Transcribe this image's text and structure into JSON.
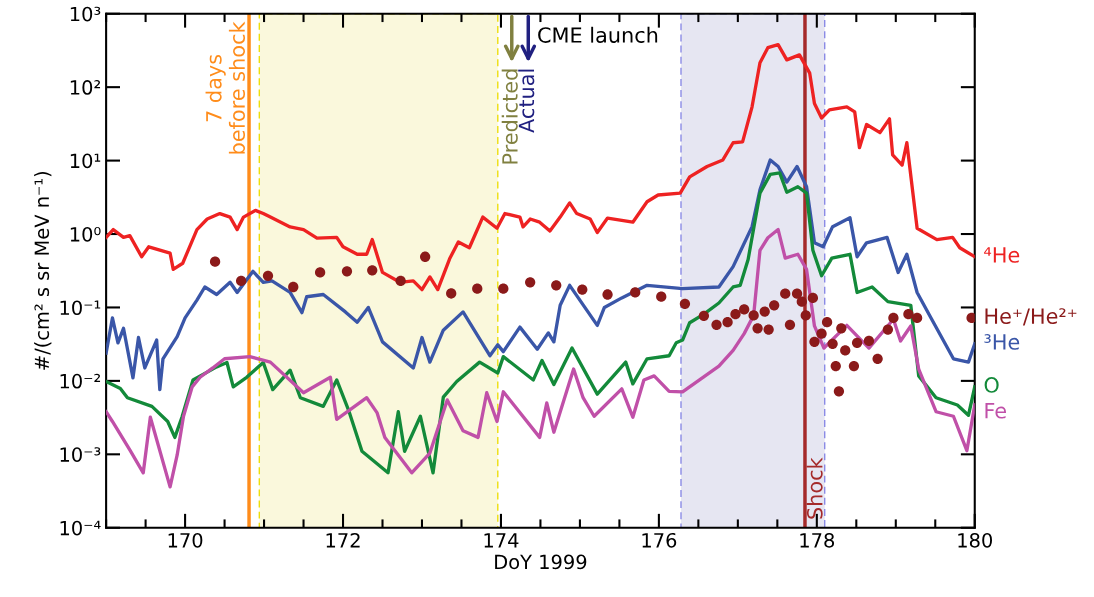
{
  "chart_data": {
    "type": "line",
    "xlabel": "DoY 1999",
    "ylabel": "#/(cm² s sr MeV n⁻¹)",
    "log": "y",
    "xlim": [
      169,
      180
    ],
    "xticks": [
      {
        "value": 169,
        "label": null
      },
      {
        "value": 169.5,
        "label": null
      },
      170,
      {
        "value": 170.5,
        "label": null
      },
      {
        "value": 171,
        "label": null
      },
      {
        "value": 171.5,
        "label": null
      },
      172,
      {
        "value": 172.5,
        "label": null
      },
      {
        "value": 173,
        "label": null
      },
      {
        "value": 173.5,
        "label": null
      },
      174,
      {
        "value": 174.5,
        "label": null
      },
      {
        "value": 175,
        "label": null
      },
      {
        "value": 175.5,
        "label": null
      },
      176,
      {
        "value": 176.5,
        "label": null
      },
      {
        "value": 177,
        "label": null
      },
      {
        "value": 177.5,
        "label": null
      },
      178,
      {
        "value": 178.5,
        "label": null
      },
      {
        "value": 179,
        "label": null
      },
      {
        "value": 179.5,
        "label": null
      },
      180
    ],
    "ylim": [
      0.0001,
      1000
    ],
    "yticks": [
      {
        "value": 0.0001,
        "label": "10⁻⁴"
      },
      {
        "value": 0.001,
        "label": "10⁻³"
      },
      {
        "value": 0.01,
        "label": "10⁻²"
      },
      {
        "value": 0.1,
        "label": "10⁻¹"
      },
      {
        "value": 1,
        "label": "10⁰"
      },
      {
        "value": 10,
        "label": "10¹"
      },
      {
        "value": 100,
        "label": "10²"
      },
      {
        "value": 1000,
        "label": "10³"
      }
    ],
    "grid": false,
    "legend": "right",
    "series": [
      {
        "name": "⁴He",
        "color": "#ee2222",
        "x": [
          169.0,
          169.09,
          169.22,
          169.3,
          169.45,
          169.54,
          169.81,
          169.85,
          169.97,
          170.15,
          170.28,
          170.44,
          170.57,
          170.66,
          170.74,
          170.89,
          170.99,
          171.08,
          171.33,
          171.5,
          171.67,
          171.92,
          172.0,
          172.18,
          172.3,
          172.37,
          172.5,
          172.72,
          172.89,
          173.0,
          173.1,
          173.2,
          173.35,
          173.46,
          173.6,
          173.77,
          173.95,
          174.05,
          174.24,
          174.28,
          174.37,
          174.49,
          174.62,
          174.75,
          174.87,
          174.96,
          175.13,
          175.22,
          175.35,
          175.67,
          175.85,
          175.99,
          176.27,
          176.39,
          176.61,
          176.81,
          176.94,
          177.06,
          177.18,
          177.28,
          177.38,
          177.51,
          177.62,
          177.78,
          177.91,
          177.97,
          178.06,
          178.16,
          178.38,
          178.48,
          178.54,
          178.63,
          178.8,
          178.92,
          178.96,
          179.08,
          179.14,
          179.27,
          179.52,
          179.72,
          179.81,
          180.0
        ],
        "values": [
          0.9,
          1.15,
          0.9,
          0.95,
          0.49,
          0.67,
          0.55,
          0.33,
          0.4,
          1.15,
          1.6,
          1.9,
          1.7,
          1.15,
          1.7,
          2.1,
          1.9,
          1.7,
          1.25,
          1.15,
          0.88,
          0.9,
          0.67,
          0.53,
          0.53,
          0.84,
          0.3,
          0.22,
          0.23,
          0.175,
          0.26,
          0.175,
          0.46,
          0.78,
          0.65,
          1.7,
          1.2,
          1.9,
          1.7,
          1.25,
          1.6,
          1.45,
          1.1,
          1.7,
          2.65,
          1.9,
          1.6,
          1.05,
          1.65,
          1.45,
          2.75,
          3.4,
          3.6,
          6.0,
          8.3,
          10.2,
          17.5,
          18,
          54,
          215,
          345,
          380,
          235,
          275,
          155,
          60,
          38,
          49,
          54,
          46,
          15,
          31,
          24,
          37,
          12,
          8.7,
          17.5,
          1.2,
          0.84,
          0.9,
          0.65,
          0.49
        ]
      },
      {
        "name": "He⁺/He²⁺",
        "type": "scatter",
        "marker": "circle",
        "color": "#8b1a1a",
        "x": [
          170.38,
          170.71,
          171.05,
          171.37,
          171.71,
          172.05,
          172.37,
          172.73,
          173.04,
          173.37,
          173.7,
          174.03,
          174.37,
          174.7,
          175.03,
          175.35,
          175.7,
          176.03,
          176.33,
          176.57,
          176.73,
          176.87,
          176.97,
          177.08,
          177.2,
          177.25,
          177.39,
          177.34,
          177.46,
          177.6,
          177.66,
          177.75,
          177.81,
          177.86,
          177.95,
          177.97,
          178.06,
          178.13,
          178.2,
          178.24,
          178.28,
          178.31,
          178.36,
          178.47,
          178.51,
          178.66,
          178.77,
          178.9,
          178.97,
          179.16,
          179.27,
          179.96
        ],
        "values": [
          0.42,
          0.23,
          0.27,
          0.19,
          0.3,
          0.31,
          0.32,
          0.23,
          0.49,
          0.155,
          0.18,
          0.18,
          0.22,
          0.2,
          0.175,
          0.15,
          0.16,
          0.14,
          0.112,
          0.077,
          0.058,
          0.063,
          0.081,
          0.094,
          0.078,
          0.052,
          0.05,
          0.088,
          0.107,
          0.154,
          0.058,
          0.154,
          0.12,
          0.078,
          0.135,
          0.034,
          0.044,
          0.063,
          0.032,
          0.0159,
          0.0072,
          0.052,
          0.026,
          0.0159,
          0.033,
          0.035,
          0.02,
          0.05,
          0.072,
          0.081,
          0.072,
          0.072
        ]
      },
      {
        "name": "³He",
        "color": "#3a56a8",
        "x": [
          169.0,
          169.08,
          169.15,
          169.22,
          169.34,
          169.41,
          169.49,
          169.64,
          169.68,
          169.72,
          169.9,
          170.0,
          170.15,
          170.25,
          170.4,
          170.57,
          170.66,
          170.86,
          170.99,
          171.1,
          171.33,
          171.48,
          171.54,
          171.75,
          172.03,
          172.18,
          172.32,
          172.5,
          172.89,
          173.0,
          173.1,
          173.27,
          173.52,
          173.86,
          173.96,
          174.03,
          174.24,
          174.46,
          174.6,
          174.67,
          174.75,
          174.87,
          175.22,
          175.31,
          175.53,
          175.85,
          176.3,
          176.76,
          176.94,
          177.18,
          177.28,
          177.41,
          177.51,
          177.62,
          177.75,
          177.87,
          177.97,
          178.08,
          178.2,
          178.42,
          178.51,
          178.63,
          178.89,
          179.03,
          179.14,
          179.27,
          179.42,
          179.73,
          179.92,
          180.0
        ],
        "values": [
          0.024,
          0.072,
          0.033,
          0.052,
          0.011,
          0.039,
          0.015,
          0.036,
          0.0076,
          0.02,
          0.04,
          0.072,
          0.126,
          0.19,
          0.15,
          0.22,
          0.16,
          0.31,
          0.22,
          0.23,
          0.16,
          0.085,
          0.14,
          0.15,
          0.087,
          0.063,
          0.1,
          0.034,
          0.015,
          0.039,
          0.018,
          0.049,
          0.087,
          0.022,
          0.031,
          0.025,
          0.054,
          0.027,
          0.045,
          0.034,
          0.107,
          0.2,
          0.057,
          0.1,
          0.135,
          0.2,
          0.18,
          0.19,
          0.36,
          1.26,
          4.0,
          10.2,
          8.3,
          5.1,
          8.3,
          4.4,
          0.76,
          0.67,
          1.26,
          1.66,
          0.49,
          0.76,
          0.9,
          0.3,
          0.53,
          0.16,
          0.081,
          0.02,
          0.018,
          0.032
        ]
      },
      {
        "name": "O",
        "color": "#138a3a",
        "x": [
          169.0,
          169.18,
          169.27,
          169.58,
          169.78,
          169.87,
          169.96,
          170.1,
          170.4,
          170.53,
          170.61,
          170.78,
          170.99,
          171.11,
          171.33,
          171.46,
          171.75,
          171.92,
          172.07,
          172.24,
          172.57,
          172.7,
          172.78,
          172.98,
          173.14,
          173.27,
          173.44,
          173.73,
          173.96,
          174.03,
          174.41,
          174.52,
          174.67,
          174.9,
          175.22,
          175.58,
          175.67,
          175.85,
          176.13,
          176.22,
          176.3,
          176.39,
          176.57,
          176.76,
          176.94,
          177.03,
          177.13,
          177.28,
          177.41,
          177.53,
          177.62,
          177.76,
          177.87,
          177.95,
          178.06,
          178.19,
          178.42,
          178.51,
          178.7,
          178.9,
          179.19,
          179.29,
          179.51,
          179.78,
          179.92,
          180.0
        ],
        "values": [
          0.0098,
          0.0079,
          0.0059,
          0.0045,
          0.0028,
          0.0017,
          0.0032,
          0.0103,
          0.0155,
          0.0178,
          0.0083,
          0.0112,
          0.0178,
          0.0076,
          0.014,
          0.0059,
          0.0045,
          0.0103,
          0.004,
          0.0011,
          0.00056,
          0.0038,
          0.0011,
          0.0033,
          0.00056,
          0.006,
          0.0098,
          0.018,
          0.0128,
          0.0214,
          0.0103,
          0.019,
          0.0089,
          0.028,
          0.0066,
          0.018,
          0.0091,
          0.02,
          0.022,
          0.033,
          0.036,
          0.062,
          0.081,
          0.115,
          0.19,
          0.2,
          0.45,
          3.6,
          6.5,
          6.8,
          3.7,
          4.4,
          3.6,
          0.6,
          0.27,
          0.47,
          0.53,
          0.16,
          0.19,
          0.12,
          0.107,
          0.0117,
          0.0059,
          0.0047,
          0.0034,
          0.0083
        ]
      },
      {
        "name": "Fe",
        "color": "#c050a8",
        "x": [
          169.0,
          169.08,
          169.3,
          169.47,
          169.56,
          169.81,
          169.9,
          169.98,
          170.09,
          170.19,
          170.35,
          170.5,
          170.82,
          171.08,
          171.5,
          171.84,
          171.92,
          172.3,
          172.43,
          172.53,
          172.87,
          173.1,
          173.32,
          173.52,
          173.71,
          173.82,
          173.95,
          174.03,
          174.49,
          174.58,
          174.67,
          174.92,
          175.04,
          175.18,
          175.53,
          175.67,
          175.81,
          175.94,
          176.13,
          176.3,
          176.76,
          176.94,
          177.08,
          177.2,
          177.28,
          177.38,
          177.51,
          177.6,
          177.76,
          177.87,
          177.97,
          178.09,
          178.38,
          178.66,
          178.97,
          179.06,
          179.19,
          179.29,
          179.51,
          179.73,
          179.9,
          180.0
        ],
        "values": [
          0.0038,
          0.0028,
          0.00115,
          0.00056,
          0.0032,
          0.00036,
          0.00098,
          0.0033,
          0.0083,
          0.0112,
          0.015,
          0.02,
          0.0214,
          0.018,
          0.0069,
          0.0112,
          0.003,
          0.0059,
          0.0037,
          0.0017,
          0.00056,
          0.00104,
          0.0055,
          0.0021,
          0.0017,
          0.0069,
          0.0028,
          0.0071,
          0.0017,
          0.005,
          0.002,
          0.0145,
          0.0059,
          0.0033,
          0.0078,
          0.0032,
          0.0103,
          0.0117,
          0.0072,
          0.0071,
          0.0159,
          0.026,
          0.044,
          0.078,
          0.6,
          0.89,
          1.15,
          0.47,
          0.53,
          0.33,
          0.056,
          0.028,
          0.057,
          0.028,
          0.069,
          0.035,
          0.056,
          0.0145,
          0.0038,
          0.0033,
          0.00112,
          0.0047
        ]
      }
    ],
    "ref_lines": [
      {
        "axis": "x",
        "value": 170.81,
        "label": "7 days\nbefore shock",
        "color": "#ff8c1a"
      },
      {
        "axis": "x",
        "value": 177.85,
        "label": "Shock",
        "color": "#a52a2a"
      }
    ],
    "bands": [
      {
        "axis": "x",
        "from": 170.94,
        "to": 173.96,
        "color": "#faf8dc"
      },
      {
        "axis": "x",
        "from": 176.28,
        "to": 178.1,
        "color": "#e6e6f2"
      }
    ],
    "annotations": [
      "Predicted",
      "Actual",
      "CME launch"
    ]
  }
}
